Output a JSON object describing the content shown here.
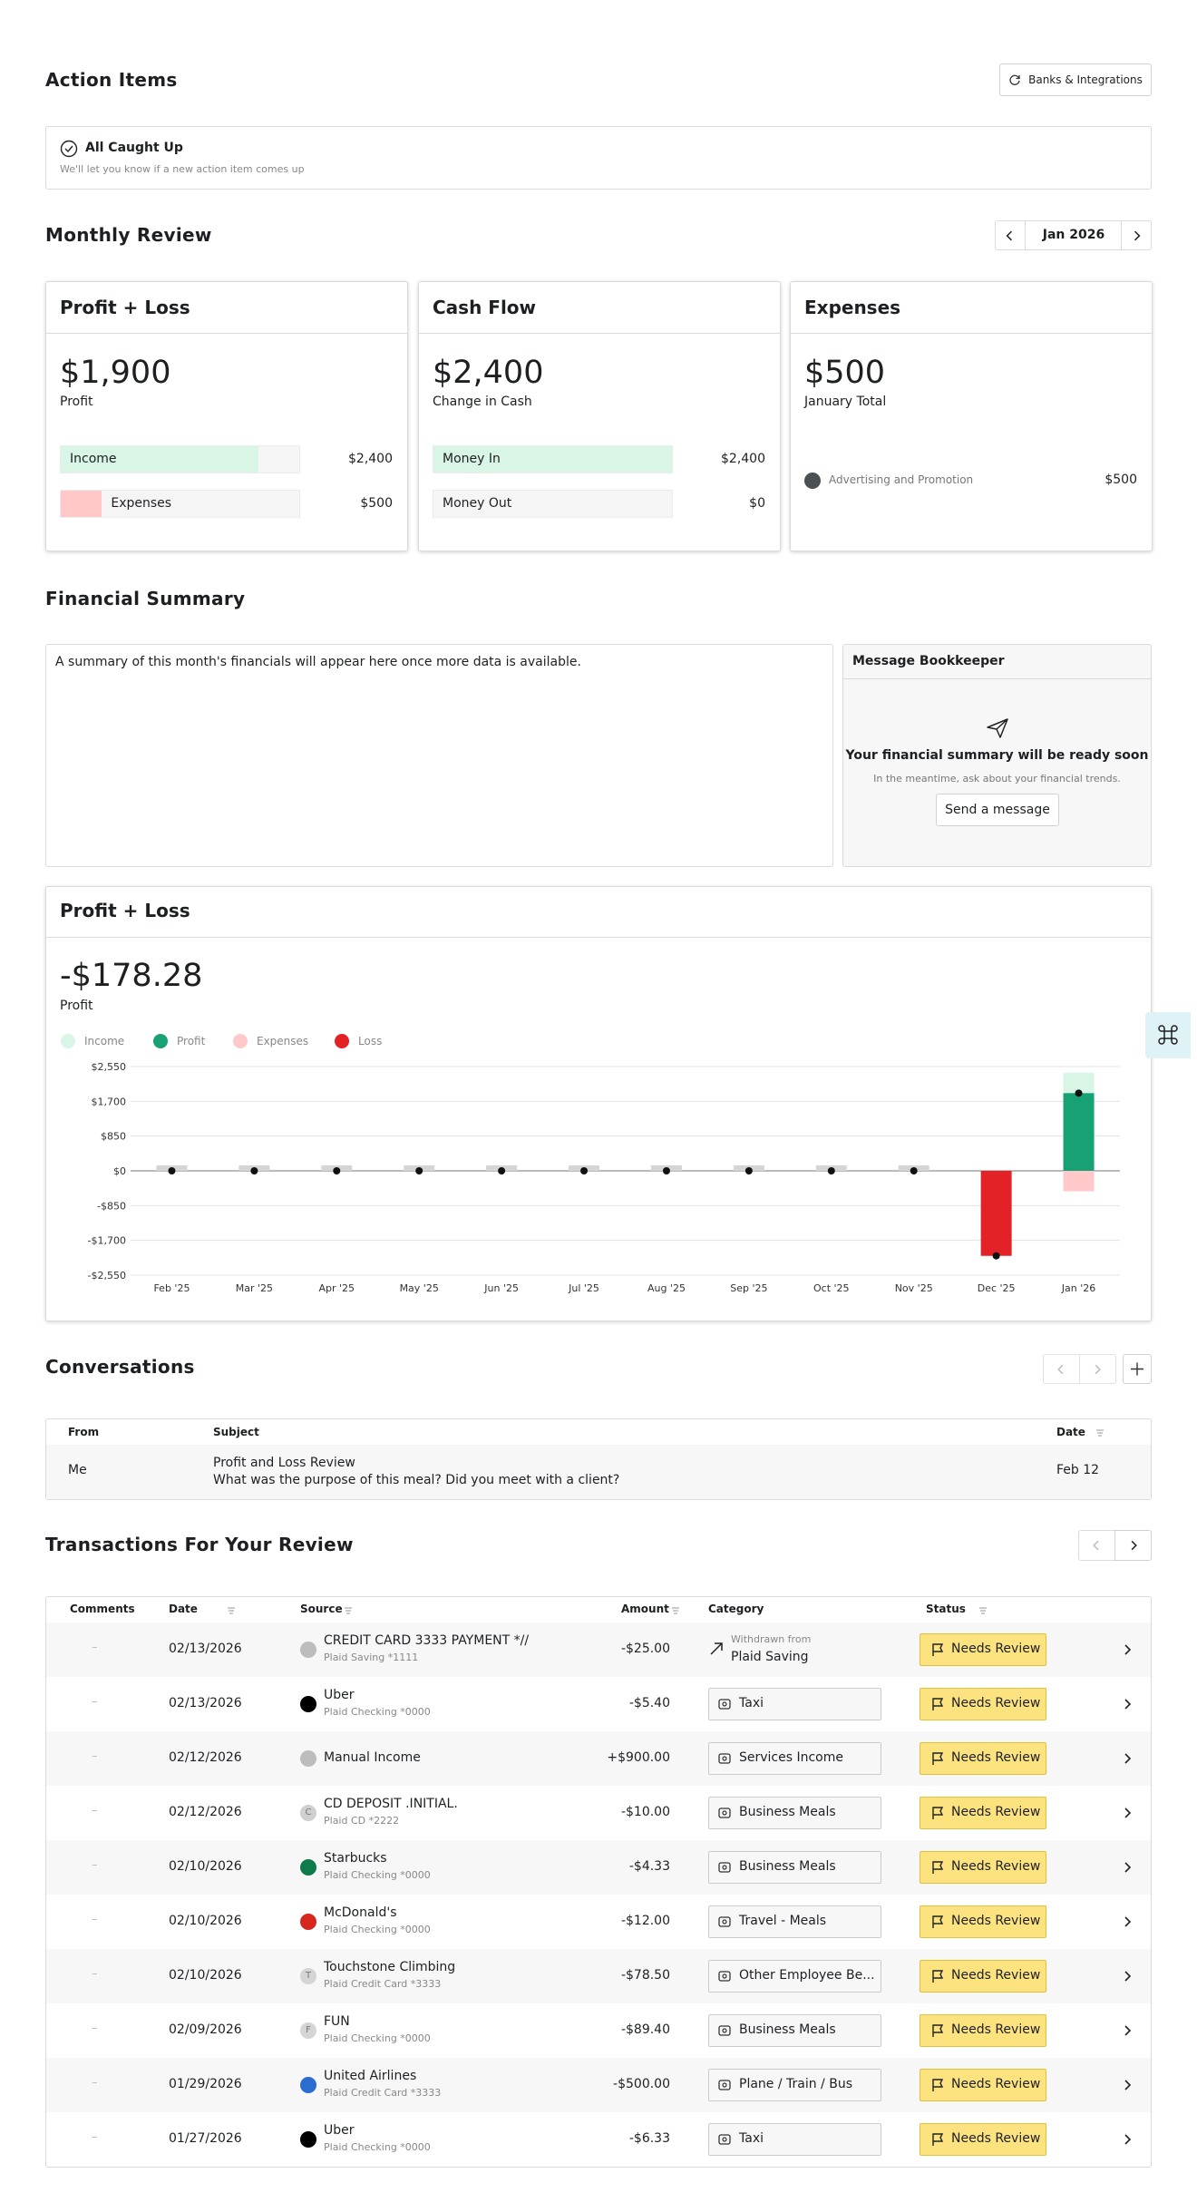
{
  "action_items": {
    "title": "Action Items",
    "button": "Banks & Integrations",
    "status_title": "All Caught Up",
    "status_text": "We'll let you know if a new action item comes up"
  },
  "monthly_review": {
    "title": "Monthly Review",
    "period": "Jan 2026",
    "cards": [
      {
        "title": "Profit + Loss",
        "amount": "$1,900",
        "amount_label": "Profit",
        "rows": [
          {
            "label": "Income",
            "value": {
              "value": 2400,
              "label": "$2,400"
            },
            "color": "#d9f5e6"
          },
          {
            "label": "Expenses",
            "value": {
              "value": 500,
              "label": "$500"
            },
            "color": "#ffc9c9"
          }
        ]
      },
      {
        "title": "Cash Flow",
        "amount": "$2,400",
        "amount_label": "Change in Cash",
        "rows": [
          {
            "label": "Money In",
            "value": {
              "value": 2400,
              "label": "$2,400"
            },
            "color": "#d9f5e6"
          },
          {
            "label": "Money Out",
            "value": {
              "value": 0,
              "label": "$0"
            },
            "color": "#ffc9c9"
          }
        ]
      },
      {
        "title": "Expenses",
        "amount": "$500",
        "amount_label": "January Total",
        "items": [
          {
            "label": "Advertising and Promotion",
            "value": "$500",
            "color": "#4b5052"
          }
        ]
      }
    ]
  },
  "financial_summary": {
    "title": "Financial Summary",
    "text": "A summary of this month's financials will appear here once more data is available.",
    "panel": {
      "title": "Message Bookkeeper",
      "heading": "Your financial summary will be ready soon",
      "text": "In the meantime, ask about your financial trends.",
      "button": "Send a message"
    }
  },
  "profit_loss": {
    "title": "Profit + Loss",
    "amount": "-$178.28",
    "amount_label": "Profit",
    "chart_data": {
      "type": "bar",
      "categories": [
        "Feb '25",
        "Mar '25",
        "Apr '25",
        "May '25",
        "Jun '25",
        "Jul '25",
        "Aug '25",
        "Sep '25",
        "Oct '25",
        "Nov '25",
        "Dec '25",
        "Jan '26"
      ],
      "series": [
        {
          "name": "Income",
          "color": "#d9f5e6",
          "values": [
            0,
            0,
            0,
            0,
            0,
            0,
            0,
            0,
            0,
            0,
            0,
            2400
          ]
        },
        {
          "name": "Profit",
          "color": "#17a174",
          "values": [
            0,
            0,
            0,
            0,
            0,
            0,
            0,
            0,
            0,
            0,
            -2078.28,
            1900
          ]
        },
        {
          "name": "Expenses",
          "color": "#ffc9c9",
          "values": [
            0,
            0,
            0,
            0,
            0,
            0,
            0,
            0,
            0,
            0,
            0,
            -500
          ]
        },
        {
          "name": "Loss",
          "color": "#e32227",
          "values": [
            0,
            0,
            0,
            0,
            0,
            0,
            0,
            0,
            0,
            0,
            -2078.28,
            0
          ]
        }
      ],
      "ylim": [
        -2550,
        2550
      ],
      "yticks": [
        {
          "value": 2550,
          "label": "$2,550"
        },
        {
          "value": 1700,
          "label": "$1,700"
        },
        {
          "value": 850,
          "label": "$850"
        },
        {
          "value": 0,
          "label": "$0"
        },
        {
          "value": -850,
          "label": "-$850"
        },
        {
          "value": -1700,
          "label": "-$1,700"
        },
        {
          "value": -2550,
          "label": "-$2,550"
        }
      ],
      "grid": true
    }
  },
  "conversations": {
    "title": "Conversations",
    "columns": [
      "From",
      "Subject",
      "Date"
    ],
    "rows": [
      {
        "from": "Me",
        "subject": "Profit and Loss Review",
        "preview": "What was the purpose of this meal? Did you meet with a client?",
        "date": "Feb 12"
      }
    ]
  },
  "transactions": {
    "title": "Transactions For Your Review",
    "columns": [
      "Comments",
      "Date",
      "Source",
      "Amount",
      "Category",
      "Status"
    ],
    "rows": [
      {
        "comment": "–",
        "date": "02/13/2026",
        "source": "CREDIT CARD 3333 PAYMENT *//",
        "account": "Plaid Saving *1111",
        "amount": "-$25.00",
        "category_note": "Withdrawn from",
        "category": "Plaid Saving",
        "status": "Needs Review"
      },
      {
        "comment": "–",
        "date": "02/13/2026",
        "source": "Uber",
        "account": "Plaid Checking *0000",
        "amount": "-$5.40",
        "category": "Taxi",
        "status": "Needs Review"
      },
      {
        "comment": "–",
        "date": "02/12/2026",
        "source": "Manual Income",
        "amount": "+$900.00",
        "category": "Services Income",
        "status": "Needs Review"
      },
      {
        "comment": "–",
        "date": "02/12/2026",
        "source": "CD DEPOSIT .INITIAL.",
        "account": "Plaid CD *2222",
        "avatar": "C",
        "amount": "-$10.00",
        "category": "Business Meals",
        "status": "Needs Review"
      },
      {
        "comment": "–",
        "date": "02/10/2026",
        "source": "Starbucks",
        "account": "Plaid Checking *0000",
        "amount": "-$4.33",
        "category": "Business Meals",
        "status": "Needs Review"
      },
      {
        "comment": "–",
        "date": "02/10/2026",
        "source": "McDonald's",
        "account": "Plaid Checking *0000",
        "amount": "-$12.00",
        "category": "Travel - Meals",
        "status": "Needs Review"
      },
      {
        "comment": "–",
        "date": "02/10/2026",
        "source": "Touchstone Climbing",
        "account": "Plaid Credit Card *3333",
        "avatar": "T",
        "amount": "-$78.50",
        "category": "Other Employee Be...",
        "status": "Needs Review"
      },
      {
        "comment": "–",
        "date": "02/09/2026",
        "source": "FUN",
        "account": "Plaid Checking *0000",
        "avatar": "F",
        "amount": "-$89.40",
        "category": "Business Meals",
        "status": "Needs Review"
      },
      {
        "comment": "–",
        "date": "01/29/2026",
        "source": "United Airlines",
        "account": "Plaid Credit Card *3333",
        "amount": "-$500.00",
        "category": "Plane / Train / Bus",
        "status": "Needs Review"
      },
      {
        "comment": "–",
        "date": "01/27/2026",
        "source": "Uber",
        "account": "Plaid Checking *0000",
        "amount": "-$6.33",
        "category": "Taxi",
        "status": "Needs Review"
      }
    ]
  }
}
